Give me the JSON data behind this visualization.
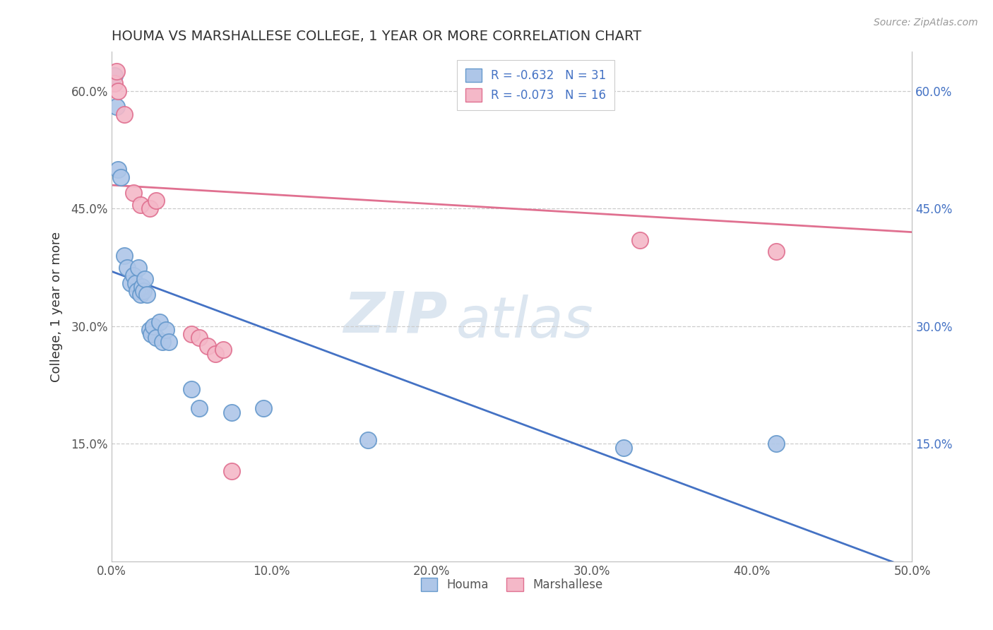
{
  "title": "HOUMA VS MARSHALLESE COLLEGE, 1 YEAR OR MORE CORRELATION CHART",
  "source_text": "Source: ZipAtlas.com",
  "ylabel_text": "College, 1 year or more",
  "xlim": [
    0.0,
    0.5
  ],
  "ylim": [
    0.0,
    0.65
  ],
  "xtick_labels": [
    "0.0%",
    "10.0%",
    "20.0%",
    "30.0%",
    "40.0%",
    "50.0%"
  ],
  "xtick_values": [
    0.0,
    0.1,
    0.2,
    0.3,
    0.4,
    0.5
  ],
  "ytick_labels": [
    "15.0%",
    "30.0%",
    "45.0%",
    "60.0%"
  ],
  "ytick_values": [
    0.15,
    0.3,
    0.45,
    0.6
  ],
  "houma_R": -0.632,
  "houma_N": 31,
  "marshallese_R": -0.073,
  "marshallese_N": 16,
  "houma_color": "#aec6e8",
  "houma_edge_color": "#6699cc",
  "marshallese_color": "#f4b8c8",
  "marshallese_edge_color": "#e07090",
  "houma_line_color": "#4472C4",
  "marshallese_line_color": "#e07090",
  "legend_label_blue": "Houma",
  "legend_label_pink": "Marshallese",
  "watermark_zip": "ZIP",
  "watermark_atlas": "atlas",
  "houma_x": [
    0.002,
    0.003,
    0.004,
    0.006,
    0.008,
    0.01,
    0.012,
    0.014,
    0.015,
    0.016,
    0.017,
    0.018,
    0.019,
    0.02,
    0.021,
    0.022,
    0.024,
    0.025,
    0.026,
    0.028,
    0.03,
    0.032,
    0.034,
    0.036,
    0.05,
    0.055,
    0.075,
    0.095,
    0.16,
    0.32,
    0.415
  ],
  "houma_y": [
    0.62,
    0.58,
    0.5,
    0.49,
    0.39,
    0.375,
    0.355,
    0.365,
    0.355,
    0.345,
    0.375,
    0.34,
    0.35,
    0.345,
    0.36,
    0.34,
    0.295,
    0.29,
    0.3,
    0.285,
    0.305,
    0.28,
    0.295,
    0.28,
    0.22,
    0.195,
    0.19,
    0.195,
    0.155,
    0.145,
    0.15
  ],
  "marshallese_x": [
    0.002,
    0.003,
    0.004,
    0.008,
    0.014,
    0.018,
    0.024,
    0.028,
    0.05,
    0.055,
    0.06,
    0.065,
    0.07,
    0.075,
    0.33,
    0.415
  ],
  "marshallese_y": [
    0.61,
    0.625,
    0.6,
    0.57,
    0.47,
    0.455,
    0.45,
    0.46,
    0.29,
    0.285,
    0.275,
    0.265,
    0.27,
    0.115,
    0.41,
    0.395
  ],
  "houma_line_x0": 0.0,
  "houma_line_y0": 0.37,
  "houma_line_x1": 0.5,
  "houma_line_y1": -0.01,
  "marsh_line_x0": 0.0,
  "marsh_line_y0": 0.48,
  "marsh_line_x1": 0.5,
  "marsh_line_y1": 0.42
}
